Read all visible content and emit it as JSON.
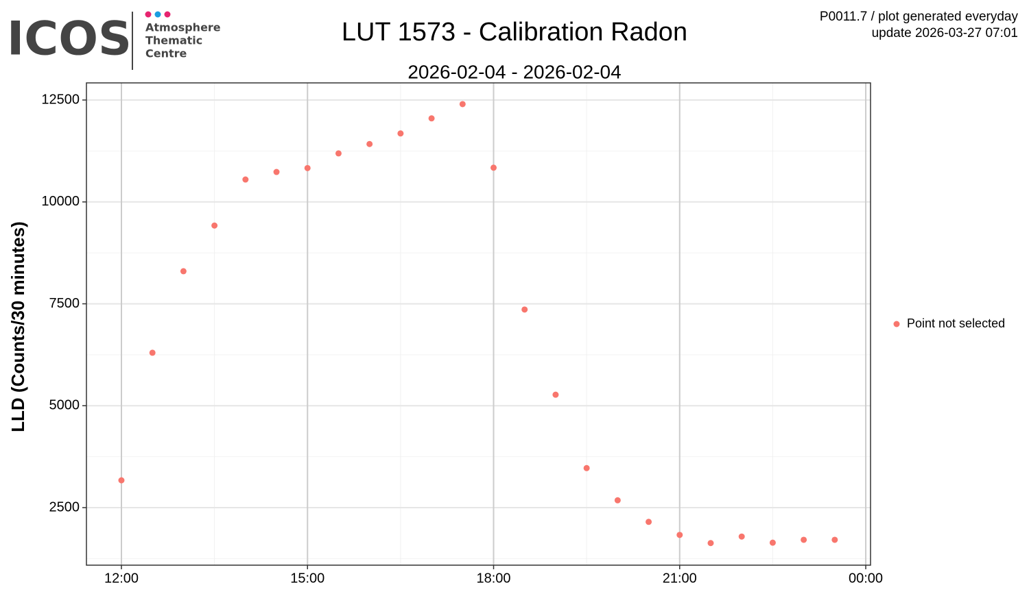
{
  "logo": {
    "name": "ICOS",
    "lines": [
      "Atmosphere",
      "Thematic",
      "Centre"
    ]
  },
  "info": [
    "P0011.7 / plot generated everyday",
    "update  2026-03-27 07:01"
  ],
  "chart_data": {
    "type": "scatter",
    "title": "LUT 1573 - Calibration Radon",
    "subtitle": "2026-02-04 - 2026-02-04",
    "y_label": "LLD (Counts/30 minutes)",
    "x": [
      12,
      12.5,
      13,
      13.5,
      14,
      14.5,
      15,
      15.5,
      16,
      16.5,
      17,
      17.5,
      18,
      18.5,
      19,
      19.5,
      20,
      20.5,
      21,
      21.5,
      22,
      22.5,
      23,
      23.5
    ],
    "series": [
      {
        "name": "Point not selected",
        "color": "#f8766d",
        "values": [
          3170,
          6300,
          8300,
          9420,
          10550,
          10735,
          10830,
          11190,
          11420,
          11680,
          12050,
          12400,
          10840,
          7360,
          5270,
          3470,
          2680,
          2150,
          1830,
          1630,
          1790,
          1640,
          1710,
          1710
        ]
      }
    ],
    "xlim": [
      11.436,
      24.077
    ],
    "xticks": [
      {
        "value": 12,
        "label": "12:00"
      },
      {
        "value": 15,
        "label": "15:00"
      },
      {
        "value": 18,
        "label": "18:00"
      },
      {
        "value": 21,
        "label": "21:00"
      },
      {
        "value": 24,
        "label": "00:00"
      }
    ],
    "ylim": [
      1088,
      12920
    ],
    "yticks": [
      2500,
      5000,
      7500,
      10000,
      12500
    ],
    "grid": true,
    "legend": "right"
  }
}
